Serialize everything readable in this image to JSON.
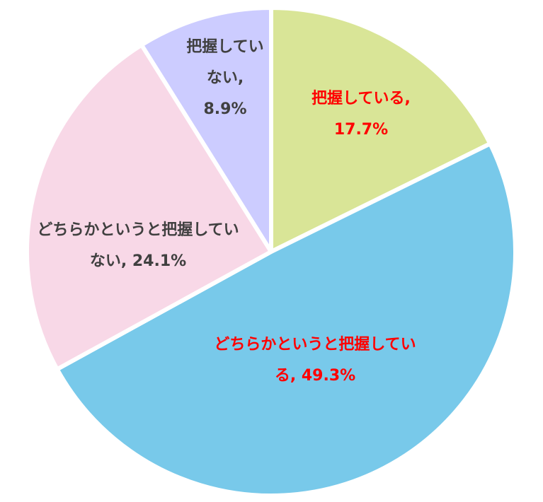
{
  "chart_data": {
    "type": "pie",
    "start_angle": "top",
    "direction": "clockwise",
    "slices": [
      {
        "label": "把握している",
        "value": 17.7,
        "color": "#D9E597",
        "label_color": "#FF0000"
      },
      {
        "label": "どちらかというと把握している",
        "value": 49.3,
        "color": "#78C9EA",
        "label_color": "#FF0000"
      },
      {
        "label": "どちらかというと把握していない",
        "value": 24.1,
        "color": "#F8D8E7",
        "label_color": "#404040"
      },
      {
        "label": "把握していない",
        "value": 8.9,
        "color": "#CCCCFF",
        "label_color": "#404040"
      }
    ],
    "separator_color": "#FFFFFF"
  }
}
